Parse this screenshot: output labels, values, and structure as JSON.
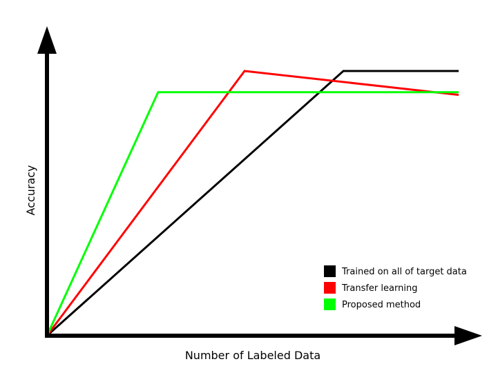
{
  "chart_data": {
    "type": "line",
    "title": "",
    "xlabel": "Number of Labeled Data",
    "ylabel": "Accuracy",
    "xlim": [
      0,
      10
    ],
    "ylim": [
      0,
      10
    ],
    "grid": false,
    "ticks": false,
    "legend_position": "bottom-right",
    "series": [
      {
        "name": "Trained on all of target data",
        "color": "#000000",
        "x": [
          0,
          7.2,
          10
        ],
        "y": [
          0,
          10,
          10
        ]
      },
      {
        "name": "Transfer learning",
        "color": "#ff0000",
        "x": [
          0,
          4.8,
          10
        ],
        "y": [
          0,
          10,
          9.1
        ]
      },
      {
        "name": "Proposed method",
        "color": "#00ff00",
        "x": [
          0,
          2.7,
          10
        ],
        "y": [
          0,
          9.2,
          9.2
        ]
      }
    ]
  }
}
